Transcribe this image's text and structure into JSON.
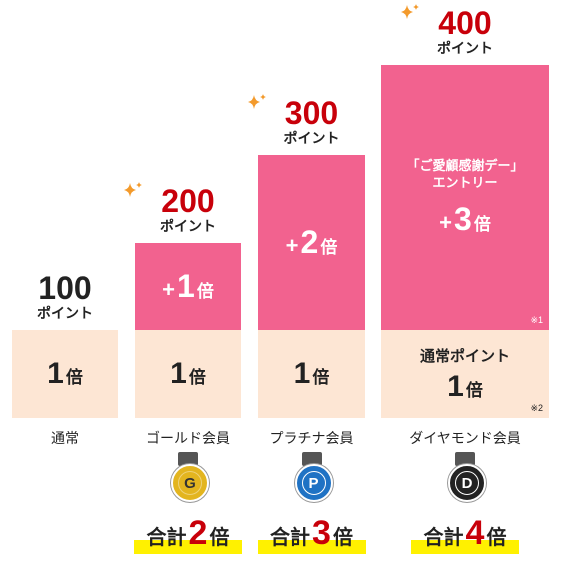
{
  "columns": [
    {
      "points": "100",
      "points_unit": "ポイント",
      "base": {
        "num": "1",
        "suffix": "倍"
      },
      "member": "通常"
    },
    {
      "points": "200",
      "points_unit": "ポイント",
      "bonus": {
        "prefix": "+",
        "num": "1",
        "suffix": "倍"
      },
      "base": {
        "num": "1",
        "suffix": "倍"
      },
      "member": "ゴールド会員",
      "medal": "G",
      "total": {
        "label": "合計",
        "num": "2",
        "suffix": "倍"
      }
    },
    {
      "points": "300",
      "points_unit": "ポイント",
      "bonus": {
        "prefix": "+",
        "num": "2",
        "suffix": "倍"
      },
      "base": {
        "num": "1",
        "suffix": "倍"
      },
      "member": "プラチナ会員",
      "medal": "P",
      "total": {
        "label": "合計",
        "num": "3",
        "suffix": "倍"
      }
    },
    {
      "points": "400",
      "points_unit": "ポイント",
      "bonus": {
        "caption": [
          "「ご愛顧感謝デー」",
          "エントリー"
        ],
        "prefix": "+",
        "num": "3",
        "suffix": "倍",
        "note": "※1"
      },
      "base": {
        "caption": "通常ポイント",
        "num": "1",
        "suffix": "倍",
        "note": "※2"
      },
      "member": "ダイヤモンド会員",
      "medal": "D",
      "total": {
        "label": "合計",
        "num": "4",
        "suffix": "倍"
      }
    }
  ]
}
